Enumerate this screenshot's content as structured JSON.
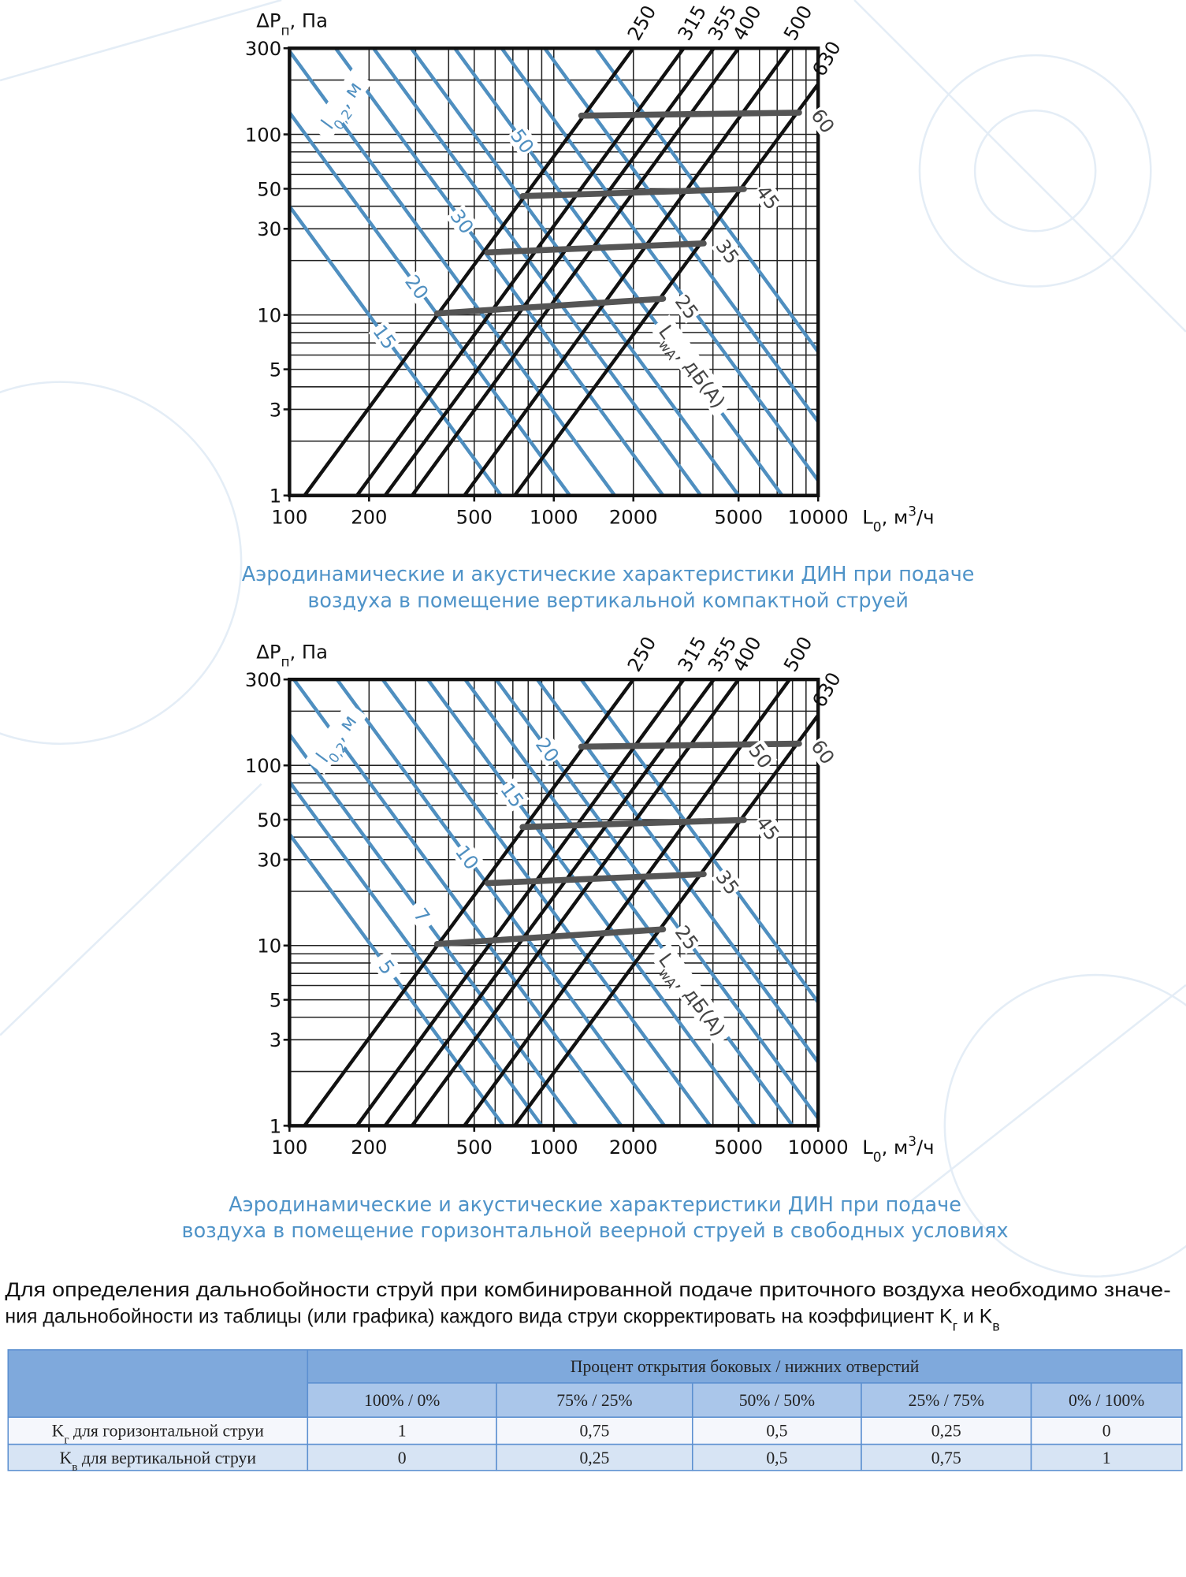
{
  "chart_data": [
    {
      "type": "nomogram",
      "title_lines": [
        "Аэродинамические и акустические характеристики ДИН при подаче",
        "воздуха в помещение вертикальной компактной струей"
      ],
      "y_label": {
        "main": "ΔP",
        "sub": "п",
        "rest": ", Па"
      },
      "x_label": {
        "main": "L",
        "sub": "0",
        "rest": ", м",
        "sup": "3",
        "tail": "/ч"
      },
      "x_scale": "log",
      "y_scale": "log",
      "xlim": [
        100,
        10000
      ],
      "ylim": [
        1,
        300
      ],
      "xticks": [
        100,
        200,
        500,
        1000,
        2000,
        5000,
        10000
      ],
      "yticks": [
        1,
        3,
        5,
        10,
        30,
        50,
        100,
        300
      ],
      "xgrid": [
        100,
        200,
        300,
        400,
        500,
        600,
        700,
        800,
        900,
        1000,
        2000,
        3000,
        4000,
        5000,
        6000,
        7000,
        8000,
        9000,
        10000
      ],
      "ygrid": [
        1,
        2,
        3,
        4,
        5,
        6,
        7,
        8,
        9,
        10,
        20,
        30,
        40,
        50,
        60,
        70,
        80,
        90,
        100,
        200,
        300
      ],
      "size_lines": [
        {
          "name": "250",
          "color": "#111111",
          "x": [
            114,
            2000
          ],
          "values": [
            1,
            300
          ]
        },
        {
          "name": "315",
          "color": "#111111",
          "x": [
            180,
            3100
          ],
          "values": [
            1,
            300
          ]
        },
        {
          "name": "355",
          "color": "#111111",
          "x": [
            230,
            4030
          ],
          "values": [
            1,
            300
          ]
        },
        {
          "name": "400",
          "color": "#111111",
          "x": [
            291,
            5000
          ],
          "values": [
            1,
            300
          ]
        },
        {
          "name": "500",
          "color": "#111111",
          "x": [
            459,
            7800
          ],
          "values": [
            1,
            300
          ]
        },
        {
          "name": "630",
          "color": "#111111",
          "x": [
            711,
            10000
          ],
          "values": [
            1,
            190
          ]
        }
      ],
      "throw_label": {
        "main": "l",
        "sub": "0,2",
        "rest": ", м"
      },
      "throw_lines": [
        {
          "name": "15",
          "color": "#4f8fc0",
          "x": [
            36.5,
            632
          ],
          "values": [
            300,
            1
          ]
        },
        {
          "name": "20",
          "color": "#4f8fc0",
          "x": [
            66.4,
            1150
          ],
          "values": [
            300,
            1
          ]
        },
        {
          "color": "#4f8fc0",
          "x": [
            98.2,
            1700
          ],
          "values": [
            300,
            1
          ]
        },
        {
          "name": "30",
          "color": "#4f8fc0",
          "x": [
            149.5,
            2590
          ],
          "values": [
            300,
            1
          ]
        },
        {
          "color": "#4f8fc0",
          "x": [
            207.9,
            3600
          ],
          "values": [
            300,
            1
          ]
        },
        {
          "color": "#4f8fc0",
          "x": [
            288.7,
            5000
          ],
          "values": [
            300,
            1
          ]
        },
        {
          "name": "50",
          "color": "#4f8fc0",
          "x": [
            422.1,
            7310
          ],
          "values": [
            300,
            1
          ]
        },
        {
          "color": "#4f8fc0",
          "x": [
            635.1,
            11000
          ],
          "values": [
            300,
            1
          ]
        },
        {
          "color": "#4f8fc0",
          "x": [
            923.8,
            16000
          ],
          "values": [
            300,
            1
          ]
        },
        {
          "color": "#4f8fc0",
          "x": [
            1443.4,
            25000
          ],
          "values": [
            300,
            1
          ]
        }
      ],
      "noise_label": {
        "main": "L",
        "sub": "wA",
        "rest": ", дБ(А)"
      },
      "noise_lines": [
        {
          "name": "25",
          "color": "#555555",
          "x": [
            362,
            2590
          ],
          "values": [
            10.2,
            12.3
          ]
        },
        {
          "name": "35",
          "color": "#555555",
          "x": [
            561,
            3690
          ],
          "values": [
            22.2,
            24.9
          ]
        },
        {
          "name": "45",
          "color": "#555555",
          "x": [
            762,
            5240
          ],
          "values": [
            45.5,
            49.8
          ]
        },
        {
          "name": "60",
          "color": "#555555",
          "x": [
            1270,
            8470
          ],
          "values": [
            127,
            132
          ]
        }
      ]
    },
    {
      "type": "nomogram",
      "title_lines": [
        "Аэродинамические и акустические характеристики ДИН при подаче",
        "воздуха в помещение горизонтальной веерной струей в свободных условиях"
      ],
      "y_label": {
        "main": "ΔP",
        "sub": "п",
        "rest": ", Па"
      },
      "x_label": {
        "main": "L",
        "sub": "0",
        "rest": ", м",
        "sup": "3",
        "tail": "/ч"
      },
      "x_scale": "log",
      "y_scale": "log",
      "xlim": [
        100,
        10000
      ],
      "ylim": [
        1,
        300
      ],
      "xticks": [
        100,
        200,
        500,
        1000,
        2000,
        5000,
        10000
      ],
      "yticks": [
        1,
        3,
        5,
        10,
        30,
        50,
        100,
        300
      ],
      "xgrid": [
        100,
        200,
        300,
        400,
        500,
        600,
        700,
        800,
        900,
        1000,
        2000,
        3000,
        4000,
        5000,
        6000,
        7000,
        8000,
        9000,
        10000
      ],
      "ygrid": [
        1,
        2,
        3,
        4,
        5,
        6,
        7,
        8,
        9,
        10,
        20,
        30,
        40,
        50,
        60,
        70,
        80,
        90,
        100,
        200,
        300
      ],
      "size_lines": [
        {
          "name": "250",
          "color": "#111111",
          "x": [
            114,
            2000
          ],
          "values": [
            1,
            300
          ]
        },
        {
          "name": "315",
          "color": "#111111",
          "x": [
            180,
            3100
          ],
          "values": [
            1,
            300
          ]
        },
        {
          "name": "355",
          "color": "#111111",
          "x": [
            230,
            4030
          ],
          "values": [
            1,
            300
          ]
        },
        {
          "name": "400",
          "color": "#111111",
          "x": [
            291,
            5000
          ],
          "values": [
            1,
            300
          ]
        },
        {
          "name": "500",
          "color": "#111111",
          "x": [
            459,
            7800
          ],
          "values": [
            1,
            300
          ]
        },
        {
          "name": "630",
          "color": "#111111",
          "x": [
            711,
            10000
          ],
          "values": [
            1,
            190
          ]
        }
      ],
      "throw_label": {
        "main": "l",
        "sub": "0,2",
        "rest": ", м"
      },
      "throw_lines": [
        {
          "name": "5",
          "color": "#4f8fc0",
          "x": [
            37.2,
            645
          ],
          "values": [
            300,
            1
          ]
        },
        {
          "color": "#4f8fc0",
          "x": [
            52.0,
            900
          ],
          "values": [
            300,
            1
          ]
        },
        {
          "name": "7",
          "color": "#4f8fc0",
          "x": [
            70.4,
            1220
          ],
          "values": [
            300,
            1
          ]
        },
        {
          "color": "#4f8fc0",
          "x": [
            103.9,
            1800
          ],
          "values": [
            300,
            1
          ]
        },
        {
          "name": "10",
          "color": "#4f8fc0",
          "x": [
            151.3,
            2620
          ],
          "values": [
            300,
            1
          ]
        },
        {
          "color": "#4f8fc0",
          "x": [
            225.2,
            3900
          ],
          "values": [
            300,
            1
          ]
        },
        {
          "name": "15",
          "color": "#4f8fc0",
          "x": [
            333.7,
            5780
          ],
          "values": [
            300,
            1
          ]
        },
        {
          "color": "#4f8fc0",
          "x": [
            461.9,
            8000
          ],
          "values": [
            300,
            1
          ]
        },
        {
          "name": "20",
          "color": "#4f8fc0",
          "x": [
            605.1,
            10480
          ],
          "values": [
            300,
            1
          ]
        },
        {
          "color": "#4f8fc0",
          "x": [
            866.0,
            15000
          ],
          "values": [
            300,
            1
          ]
        },
        {
          "color": "#4f8fc0",
          "x": [
            1270.2,
            22000
          ],
          "values": [
            300,
            1
          ]
        }
      ],
      "noise_label": {
        "main": "L",
        "sub": "wA",
        "rest": ", дБ(А)"
      },
      "noise_lines": [
        {
          "name": "25",
          "color": "#555555",
          "x": [
            362,
            2590
          ],
          "values": [
            10.2,
            12.3
          ]
        },
        {
          "name": "35",
          "color": "#555555",
          "x": [
            561,
            3690
          ],
          "values": [
            22.2,
            24.9
          ]
        },
        {
          "name": "45",
          "color": "#555555",
          "x": [
            762,
            5240
          ],
          "values": [
            45.5,
            49.8
          ]
        },
        {
          "name": "60",
          "color": "#555555",
          "x": [
            1270,
            8470
          ],
          "values": [
            127,
            132
          ]
        }
      ],
      "annotations": [
        {
          "text": "50"
        }
      ]
    }
  ],
  "paragraph": {
    "line1": "Для определения дальнобойности струй при комбинированной подаче приточного воздуха необходимо значе-",
    "line2": {
      "main": "ния дальнобойности из таблицы (или графика) каждого вида струи скорректировать на коэффициент K",
      "sub": "г",
      "rest": " и K",
      "sub2": "в"
    }
  },
  "table": {
    "group_header": "Процент открытия боковых / нижних отверстий",
    "columns": [
      "100% / 0%",
      "75% / 25%",
      "50% / 50%",
      "25% / 75%",
      "0% / 100%"
    ],
    "rows": [
      {
        "label": {
          "main": "K",
          "sub": "г",
          "rest": " для горизонтальной струи"
        },
        "cells": [
          "1",
          "0,75",
          "0,5",
          "0,25",
          "0"
        ]
      },
      {
        "label": {
          "main": "K",
          "sub": "в",
          "rest": " для вертикальной струи"
        },
        "cells": [
          "0",
          "0,25",
          "0,5",
          "0,75",
          "1"
        ]
      }
    ]
  }
}
